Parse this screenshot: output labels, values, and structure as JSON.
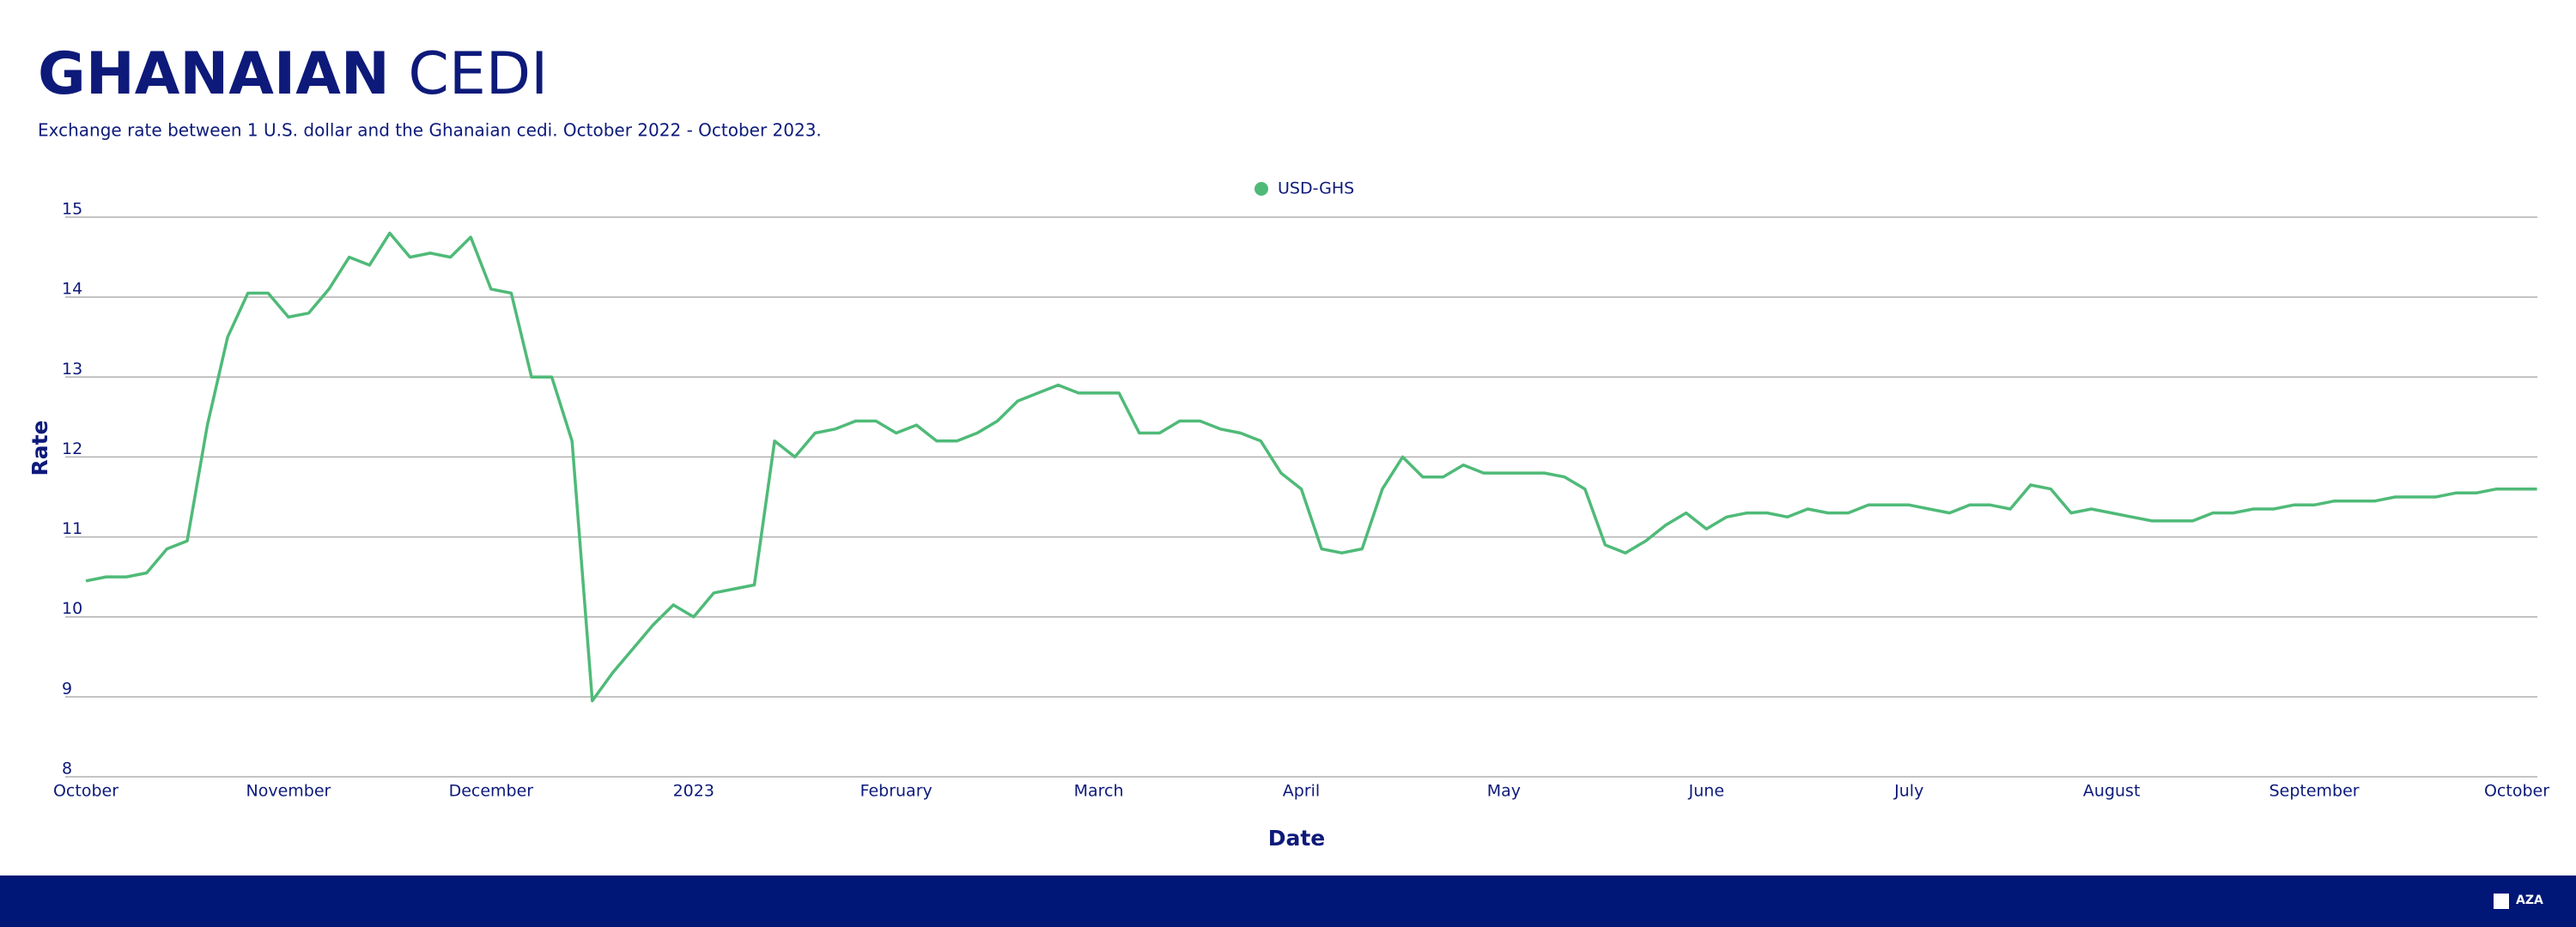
{
  "chart_data": {
    "type": "line",
    "title_parts": [
      "GHANAIAN",
      "CEDI"
    ],
    "subtitle": "Exchange rate between 1 U.S. dollar and the Ghanaian cedi. October 2022 - October 2023.",
    "x_label": "Date",
    "y_label": "Rate",
    "categories": [
      "October",
      null,
      null,
      null,
      null,
      null,
      null,
      null,
      null,
      null,
      "November",
      null,
      null,
      null,
      null,
      null,
      null,
      null,
      null,
      null,
      "December",
      null,
      null,
      null,
      null,
      null,
      null,
      null,
      null,
      null,
      "2023",
      null,
      null,
      null,
      null,
      null,
      null,
      null,
      null,
      null,
      "February",
      null,
      null,
      null,
      null,
      null,
      null,
      null,
      null,
      null,
      "March",
      null,
      null,
      null,
      null,
      null,
      null,
      null,
      null,
      null,
      "April",
      null,
      null,
      null,
      null,
      null,
      null,
      null,
      null,
      null,
      "May",
      null,
      null,
      null,
      null,
      null,
      null,
      null,
      null,
      null,
      "June",
      null,
      null,
      null,
      null,
      null,
      null,
      null,
      null,
      null,
      "July",
      null,
      null,
      null,
      null,
      null,
      null,
      null,
      null,
      null,
      "August",
      null,
      null,
      null,
      null,
      null,
      null,
      null,
      null,
      null,
      "September",
      null,
      null,
      null,
      null,
      null,
      null,
      null,
      null,
      null,
      "October",
      null
    ],
    "series": [
      {
        "name": "USD-GHS",
        "color": "#4fba78",
        "values": [
          10.45,
          10.5,
          10.5,
          10.55,
          10.85,
          10.95,
          12.4,
          13.5,
          14.05,
          14.05,
          13.75,
          13.8,
          14.1,
          14.5,
          14.4,
          14.8,
          14.5,
          14.55,
          14.5,
          14.75,
          14.1,
          14.05,
          13.0,
          13.0,
          12.2,
          8.95,
          9.3,
          9.6,
          9.9,
          10.15,
          10.0,
          10.3,
          10.35,
          10.4,
          12.2,
          12.0,
          12.3,
          12.35,
          12.45,
          12.45,
          12.3,
          12.4,
          12.2,
          12.2,
          12.3,
          12.45,
          12.7,
          12.8,
          12.9,
          12.8,
          12.8,
          12.8,
          12.3,
          12.3,
          12.45,
          12.45,
          12.35,
          12.3,
          12.2,
          11.8,
          11.6,
          10.85,
          10.8,
          10.85,
          11.6,
          12.0,
          11.75,
          11.75,
          11.9,
          11.8,
          11.8,
          11.8,
          11.8,
          11.75,
          11.6,
          10.9,
          10.8,
          10.95,
          11.15,
          11.3,
          11.1,
          11.25,
          11.3,
          11.3,
          11.25,
          11.35,
          11.3,
          11.3,
          11.4,
          11.4,
          11.4,
          11.35,
          11.3,
          11.4,
          11.4,
          11.35,
          11.65,
          11.6,
          11.3,
          11.35,
          11.3,
          11.25,
          11.2,
          11.2,
          11.2,
          11.3,
          11.3,
          11.35,
          11.35,
          11.4,
          11.4,
          11.45,
          11.45,
          11.45,
          11.5,
          11.5,
          11.5,
          11.55,
          11.55,
          11.6,
          11.6,
          11.6
        ]
      }
    ],
    "ylim": [
      8,
      15
    ],
    "yticks": [
      8,
      9,
      10,
      11,
      12,
      13,
      14,
      15
    ],
    "grid": true,
    "legend": "top"
  },
  "footer": {
    "logo": "AZA"
  }
}
